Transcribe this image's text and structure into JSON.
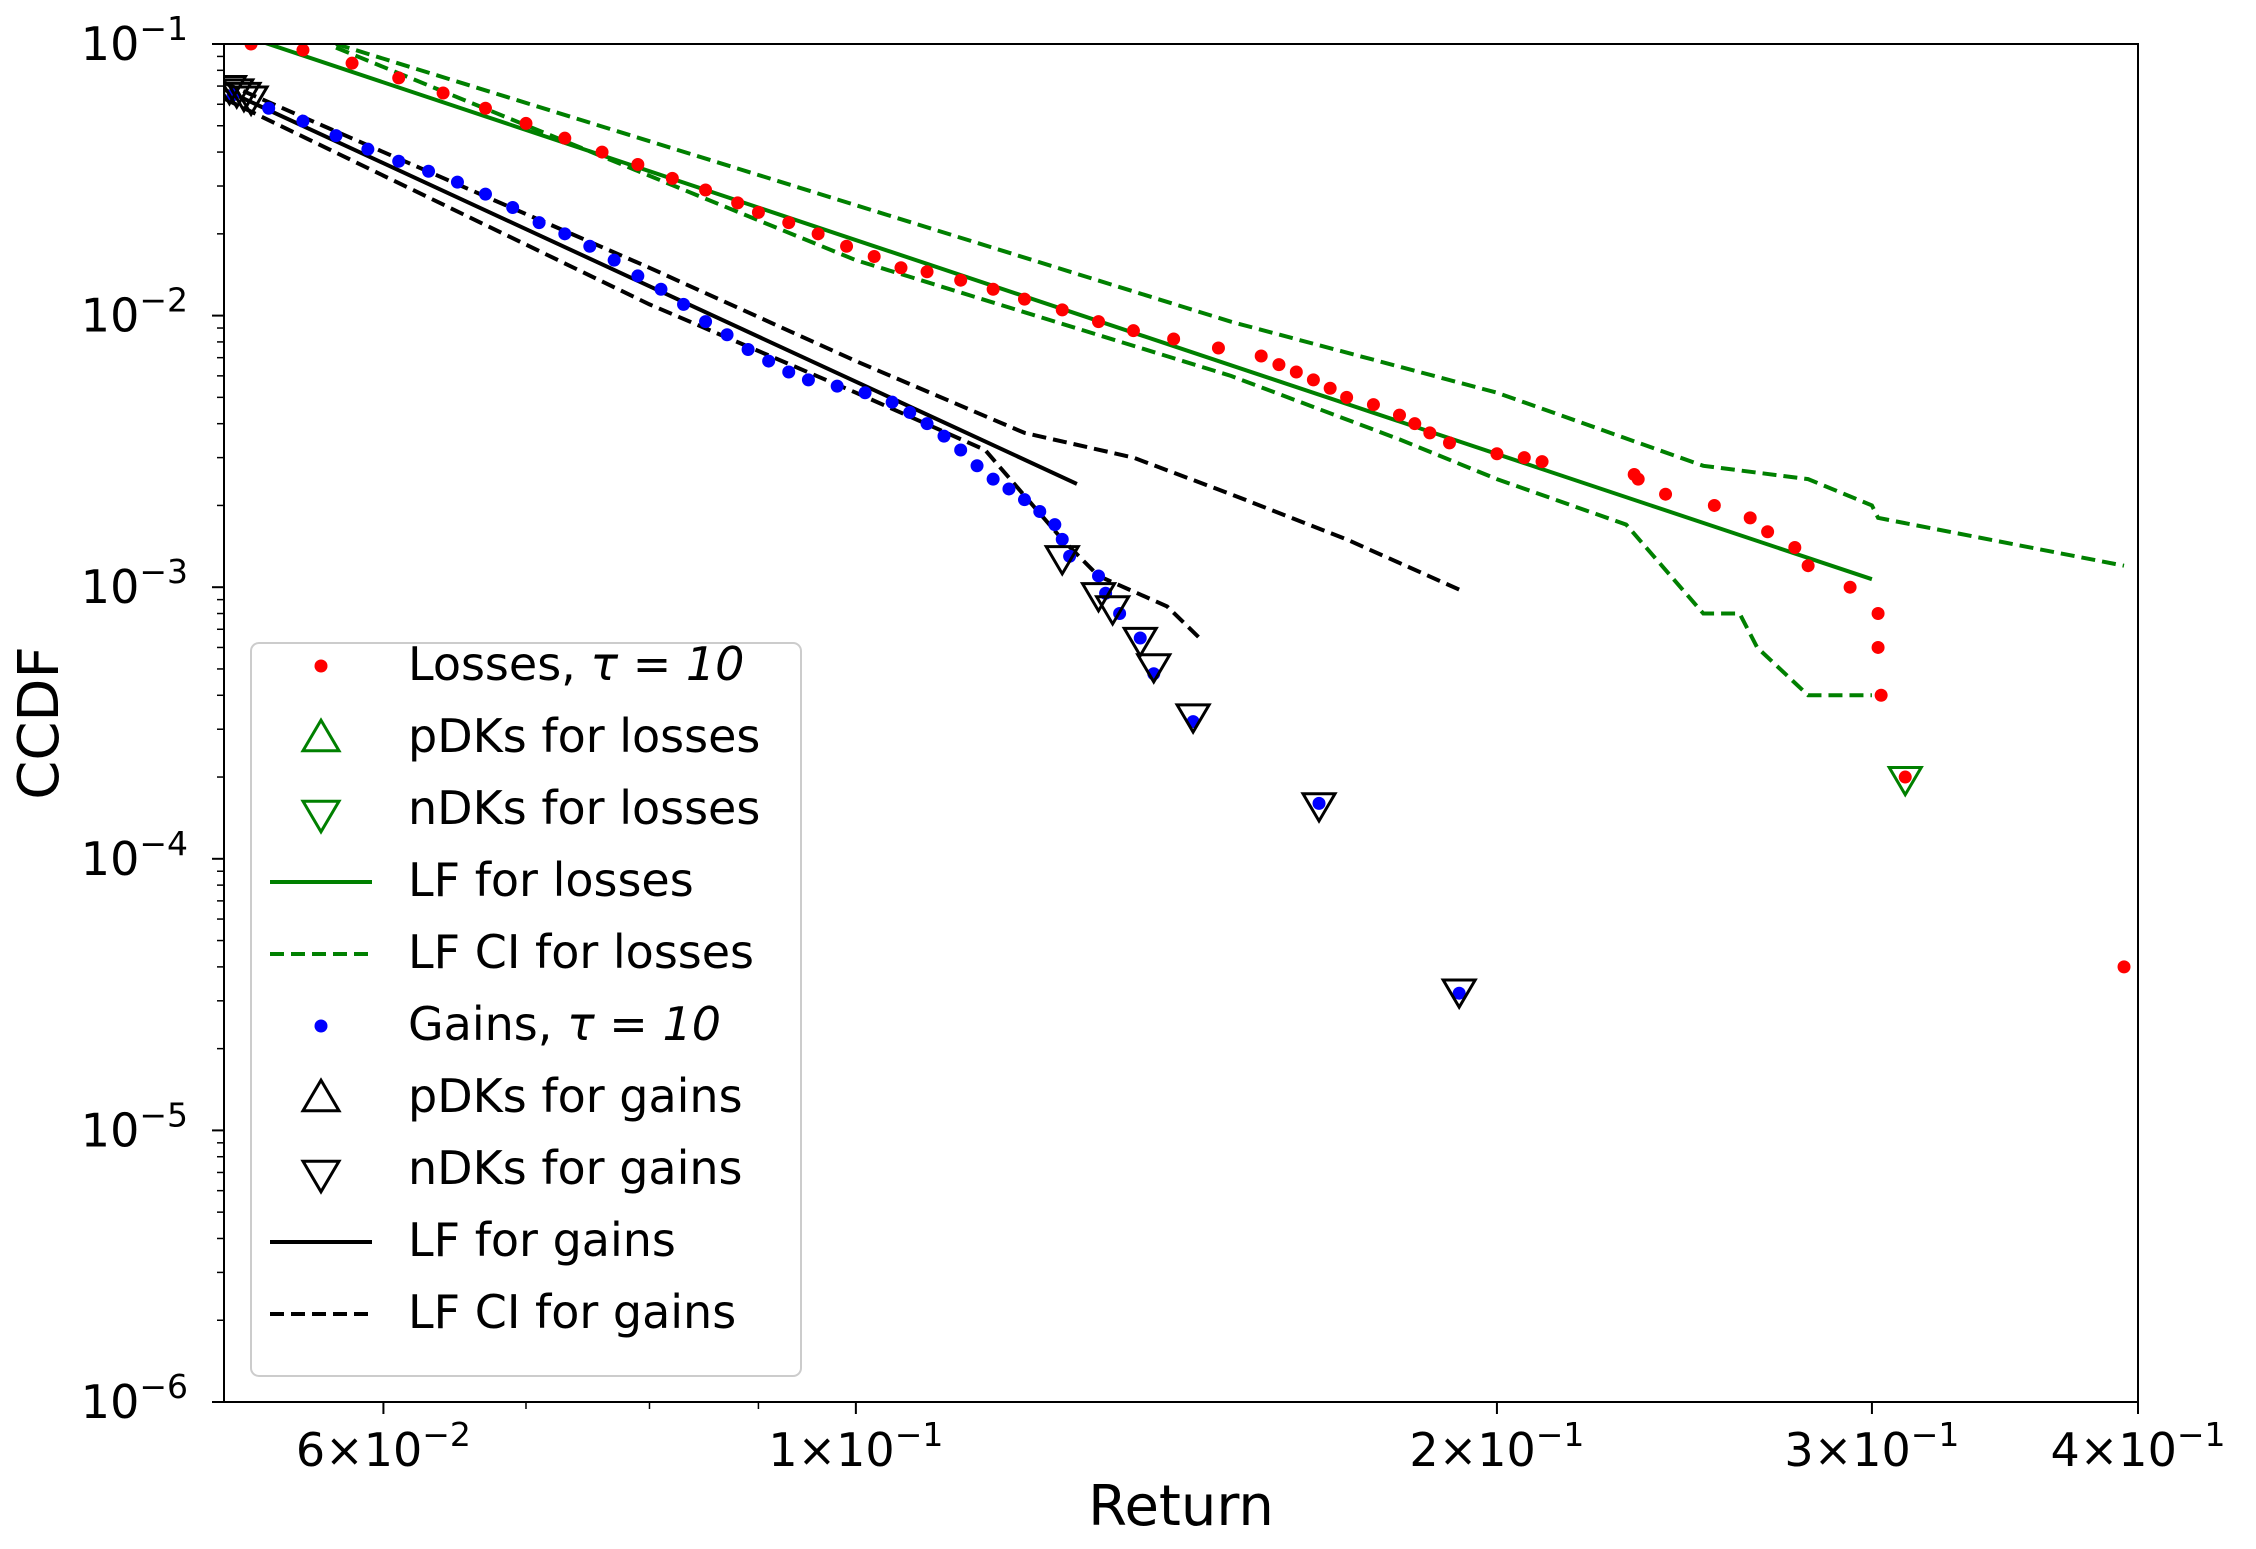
{
  "chart_data": {
    "type": "scatter",
    "xlabel": "Return",
    "ylabel": "CCDF",
    "xscale": "log",
    "yscale": "log",
    "xlim": [
      0.0505,
      0.4
    ],
    "ylim": [
      1e-06,
      0.1
    ],
    "x_ticks": [
      {
        "value": 0.06,
        "mant": "6",
        "exp": "−2"
      },
      {
        "value": 0.1,
        "mant": "1",
        "exp": "−1"
      },
      {
        "value": 0.2,
        "mant": "2",
        "exp": "−1"
      },
      {
        "value": 0.3,
        "mant": "3",
        "exp": "−1"
      },
      {
        "value": 0.4,
        "mant": "4",
        "exp": "−1"
      }
    ],
    "y_ticks": [
      {
        "value": 0.1,
        "base": "10",
        "exp": "−1"
      },
      {
        "value": 0.01,
        "base": "10",
        "exp": "−2"
      },
      {
        "value": 0.001,
        "base": "10",
        "exp": "−3"
      },
      {
        "value": 0.0001,
        "base": "10",
        "exp": "−4"
      },
      {
        "value": 1e-05,
        "base": "10",
        "exp": "−5"
      },
      {
        "value": 1e-06,
        "base": "10",
        "exp": "−6"
      }
    ],
    "legend_position": "lower-left",
    "legend": [
      {
        "label": "Losses, ",
        "math": "τ = 10",
        "kind": "dot",
        "color": "#ff0000"
      },
      {
        "label": "pDKs for losses",
        "kind": "tri-up",
        "color": "#008000"
      },
      {
        "label": "nDKs for losses",
        "kind": "tri-down",
        "color": "#008000"
      },
      {
        "label": "LF for losses",
        "kind": "line",
        "color": "#008000"
      },
      {
        "label": "LF CI for losses",
        "kind": "dashed",
        "color": "#008000"
      },
      {
        "label": "Gains, ",
        "math": "τ = 10",
        "kind": "dot",
        "color": "#0000ff"
      },
      {
        "label": "pDKs for gains",
        "kind": "tri-up",
        "color": "#000000"
      },
      {
        "label": "nDKs for gains",
        "kind": "tri-down",
        "color": "#000000"
      },
      {
        "label": "LF for gains",
        "kind": "line",
        "color": "#000000"
      },
      {
        "label": "LF CI for gains",
        "kind": "dashed",
        "color": "#000000"
      }
    ],
    "series": [
      {
        "name": "Losses",
        "kind": "dot",
        "color": "#ff0000",
        "points": [
          [
            0.052,
            0.1
          ],
          [
            0.055,
            0.095
          ],
          [
            0.058,
            0.085
          ],
          [
            0.061,
            0.075
          ],
          [
            0.064,
            0.066
          ],
          [
            0.067,
            0.058
          ],
          [
            0.07,
            0.051
          ],
          [
            0.073,
            0.045
          ],
          [
            0.076,
            0.04
          ],
          [
            0.079,
            0.036
          ],
          [
            0.082,
            0.032
          ],
          [
            0.085,
            0.029
          ],
          [
            0.088,
            0.026
          ],
          [
            0.09,
            0.024
          ],
          [
            0.093,
            0.022
          ],
          [
            0.096,
            0.02
          ],
          [
            0.099,
            0.018
          ],
          [
            0.102,
            0.0165
          ],
          [
            0.105,
            0.015
          ],
          [
            0.108,
            0.0145
          ],
          [
            0.112,
            0.0135
          ],
          [
            0.116,
            0.0125
          ],
          [
            0.12,
            0.0115
          ],
          [
            0.125,
            0.0105
          ],
          [
            0.13,
            0.0095
          ],
          [
            0.135,
            0.0088
          ],
          [
            0.141,
            0.0082
          ],
          [
            0.148,
            0.0076
          ],
          [
            0.155,
            0.0071
          ],
          [
            0.158,
            0.0066
          ],
          [
            0.161,
            0.0062
          ],
          [
            0.164,
            0.0058
          ],
          [
            0.167,
            0.0054
          ],
          [
            0.17,
            0.005
          ],
          [
            0.175,
            0.0047
          ],
          [
            0.18,
            0.0043
          ],
          [
            0.183,
            0.004
          ],
          [
            0.186,
            0.0037
          ],
          [
            0.19,
            0.0034
          ],
          [
            0.2,
            0.0031
          ],
          [
            0.206,
            0.003
          ],
          [
            0.21,
            0.0029
          ],
          [
            0.232,
            0.0026
          ],
          [
            0.233,
            0.0025
          ],
          [
            0.24,
            0.0022
          ],
          [
            0.253,
            0.002
          ],
          [
            0.263,
            0.0018
          ],
          [
            0.268,
            0.0016
          ],
          [
            0.276,
            0.0014
          ],
          [
            0.28,
            0.0012
          ],
          [
            0.293,
            0.001
          ],
          [
            0.302,
            0.0008
          ],
          [
            0.302,
            0.0006
          ],
          [
            0.303,
            0.0004
          ],
          [
            0.311,
            0.0002
          ],
          [
            0.394,
            4e-05
          ]
        ]
      },
      {
        "name": "Gains",
        "kind": "dot",
        "color": "#0000ff",
        "points": [
          [
            0.051,
            0.065
          ],
          [
            0.053,
            0.058
          ],
          [
            0.055,
            0.052
          ],
          [
            0.057,
            0.046
          ],
          [
            0.059,
            0.041
          ],
          [
            0.061,
            0.037
          ],
          [
            0.063,
            0.034
          ],
          [
            0.065,
            0.031
          ],
          [
            0.067,
            0.028
          ],
          [
            0.069,
            0.025
          ],
          [
            0.071,
            0.022
          ],
          [
            0.073,
            0.02
          ],
          [
            0.075,
            0.018
          ],
          [
            0.077,
            0.016
          ],
          [
            0.079,
            0.014
          ],
          [
            0.081,
            0.0125
          ],
          [
            0.083,
            0.011
          ],
          [
            0.085,
            0.0095
          ],
          [
            0.087,
            0.0085
          ],
          [
            0.089,
            0.0075
          ],
          [
            0.091,
            0.0068
          ],
          [
            0.093,
            0.0062
          ],
          [
            0.095,
            0.0058
          ],
          [
            0.098,
            0.0055
          ],
          [
            0.101,
            0.0052
          ],
          [
            0.104,
            0.0048
          ],
          [
            0.106,
            0.0044
          ],
          [
            0.108,
            0.004
          ],
          [
            0.11,
            0.0036
          ],
          [
            0.112,
            0.0032
          ],
          [
            0.114,
            0.0028
          ],
          [
            0.116,
            0.0025
          ],
          [
            0.118,
            0.0023
          ],
          [
            0.12,
            0.0021
          ],
          [
            0.122,
            0.0019
          ],
          [
            0.124,
            0.0017
          ],
          [
            0.125,
            0.0015
          ],
          [
            0.126,
            0.0013
          ],
          [
            0.13,
            0.0011
          ],
          [
            0.131,
            0.00095
          ],
          [
            0.133,
            0.0008
          ],
          [
            0.136,
            0.00065
          ],
          [
            0.138,
            0.00048
          ],
          [
            0.144,
            0.00032
          ],
          [
            0.165,
            0.00016
          ],
          [
            0.192,
            3.2e-05
          ]
        ]
      },
      {
        "name": "nDKs for losses",
        "kind": "tri-down",
        "color": "#008000",
        "points": [
          [
            0.311,
            0.0002
          ]
        ]
      },
      {
        "name": "nDKs for gains",
        "kind": "tri-down",
        "color": "#000000",
        "points": [
          [
            0.0508,
            0.07
          ],
          [
            0.0512,
            0.068
          ],
          [
            0.0516,
            0.066
          ],
          [
            0.052,
            0.064
          ],
          [
            0.125,
            0.0013
          ],
          [
            0.13,
            0.00095
          ],
          [
            0.132,
            0.00085
          ],
          [
            0.136,
            0.00065
          ],
          [
            0.138,
            0.00052
          ],
          [
            0.144,
            0.00034
          ],
          [
            0.165,
            0.00016
          ],
          [
            0.192,
            3.3e-05
          ]
        ]
      },
      {
        "name": "LF for losses",
        "kind": "line",
        "color": "#008000",
        "points": [
          [
            0.052,
            0.105
          ],
          [
            0.3,
            0.00107
          ]
        ]
      },
      {
        "name": "LF CI for losses (upper)",
        "kind": "dashed",
        "color": "#008000",
        "points": [
          [
            0.057,
            0.1
          ],
          [
            0.1,
            0.0255
          ],
          [
            0.15,
            0.0095
          ],
          [
            0.2,
            0.0052
          ],
          [
            0.25,
            0.0028
          ],
          [
            0.28,
            0.0025
          ],
          [
            0.3,
            0.002
          ],
          [
            0.302,
            0.0018
          ],
          [
            0.394,
            0.0012
          ]
        ]
      },
      {
        "name": "LF CI for losses (lower)",
        "kind": "dashed",
        "color": "#008000",
        "points": [
          [
            0.057,
            0.097
          ],
          [
            0.1,
            0.016
          ],
          [
            0.15,
            0.006
          ],
          [
            0.18,
            0.0035
          ],
          [
            0.2,
            0.0025
          ],
          [
            0.23,
            0.0017
          ],
          [
            0.25,
            0.0008
          ],
          [
            0.26,
            0.0008
          ],
          [
            0.265,
            0.0006
          ],
          [
            0.28,
            0.0004
          ],
          [
            0.3,
            0.0004
          ]
        ]
      },
      {
        "name": "LF for gains",
        "kind": "line",
        "color": "#000000",
        "points": [
          [
            0.0505,
            0.068
          ],
          [
            0.127,
            0.0024
          ]
        ]
      },
      {
        "name": "LF CI for gains (upper)",
        "kind": "dashed",
        "color": "#000000",
        "points": [
          [
            0.0505,
            0.072
          ],
          [
            0.08,
            0.015
          ],
          [
            0.1,
            0.0068
          ],
          [
            0.12,
            0.0037
          ],
          [
            0.135,
            0.003
          ],
          [
            0.15,
            0.0022
          ],
          [
            0.17,
            0.0015
          ],
          [
            0.192,
            0.00098
          ]
        ]
      },
      {
        "name": "LF CI for gains (lower)",
        "kind": "dashed",
        "color": "#000000",
        "points": [
          [
            0.0505,
            0.063
          ],
          [
            0.08,
            0.011
          ],
          [
            0.1,
            0.0052
          ],
          [
            0.115,
            0.0032
          ],
          [
            0.125,
            0.0015
          ],
          [
            0.13,
            0.0011
          ],
          [
            0.14,
            0.00085
          ],
          [
            0.145,
            0.00065
          ]
        ]
      }
    ]
  }
}
